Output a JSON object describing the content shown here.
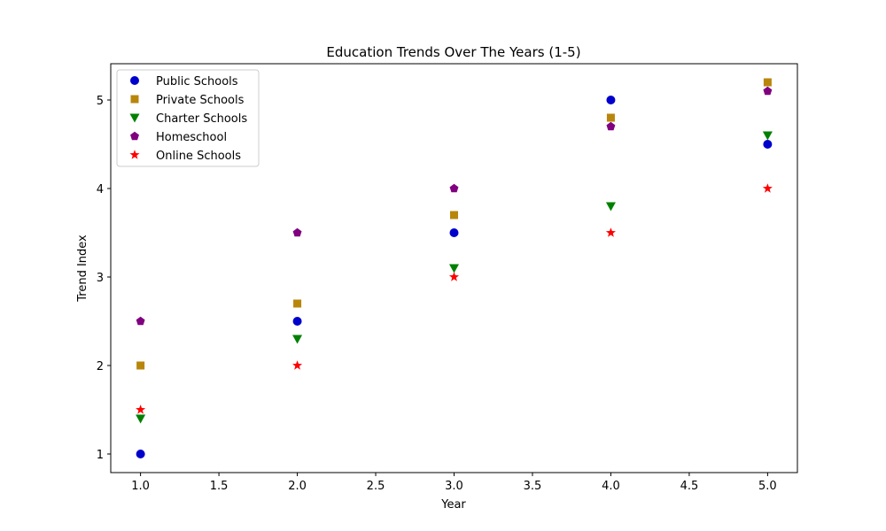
{
  "chart_data": {
    "type": "scatter",
    "title": "Education Trends Over The Years (1-5)",
    "xlabel": "Year",
    "ylabel": "Trend Index",
    "xlim": [
      0.81,
      5.19
    ],
    "ylim": [
      0.79,
      5.41
    ],
    "xticks": [
      1.0,
      1.5,
      2.0,
      2.5,
      3.0,
      3.5,
      4.0,
      4.5,
      5.0
    ],
    "xtick_labels": [
      "1.0",
      "1.5",
      "2.0",
      "2.5",
      "3.0",
      "3.5",
      "4.0",
      "4.5",
      "5.0"
    ],
    "yticks": [
      1,
      2,
      3,
      4,
      5
    ],
    "ytick_labels": [
      "1",
      "2",
      "3",
      "4",
      "5"
    ],
    "grid": false,
    "legend_position": "top-left",
    "x": [
      1,
      2,
      3,
      4,
      5
    ],
    "series": [
      {
        "name": "Public Schools",
        "color": "#0000cd",
        "marker": "circle",
        "values": [
          1.0,
          2.5,
          3.5,
          5.0,
          4.5
        ]
      },
      {
        "name": "Private Schools",
        "color": "#b8860b",
        "marker": "square",
        "values": [
          2.0,
          2.7,
          3.7,
          4.8,
          5.2
        ]
      },
      {
        "name": "Charter Schools",
        "color": "#008000",
        "marker": "triangle-down",
        "values": [
          1.4,
          2.3,
          3.1,
          3.8,
          4.6
        ]
      },
      {
        "name": "Homeschool",
        "color": "#800080",
        "marker": "pentagon",
        "values": [
          2.5,
          3.5,
          4.0,
          4.7,
          5.1
        ]
      },
      {
        "name": "Online Schools",
        "color": "#ff0000",
        "marker": "star",
        "values": [
          1.5,
          2.0,
          3.0,
          3.5,
          4.0
        ]
      }
    ]
  }
}
